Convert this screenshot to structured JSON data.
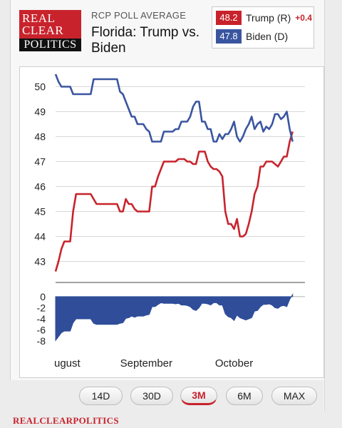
{
  "logo": {
    "line1": "REAL",
    "line2": "CLEAR",
    "line3": "POLITICS"
  },
  "header": {
    "label": "RCP POLL AVERAGE",
    "title": "Florida: Trump vs. Biden"
  },
  "legend": {
    "trump": {
      "value": "48.2",
      "name": "Trump (R)",
      "change": "+0.4"
    },
    "biden": {
      "value": "47.8",
      "name": "Biden (D)"
    }
  },
  "colors": {
    "trump": "#c8232c",
    "biden": "#3a55a0",
    "spread": "#2f4d99",
    "grid": "#d8d8d8"
  },
  "buttons": [
    {
      "label": "14D",
      "active": false
    },
    {
      "label": "30D",
      "active": false
    },
    {
      "label": "3M",
      "active": true
    },
    {
      "label": "6M",
      "active": false
    },
    {
      "label": "MAX",
      "active": false
    }
  ],
  "footer": "REALCLEARPOLITICS",
  "chart_data": {
    "type": "line",
    "x_labels": [
      "ugust",
      "September",
      "October"
    ],
    "x_label_days": [
      5,
      31,
      61
    ],
    "ylim": [
      42.5,
      50.5
    ],
    "yticks": [
      43,
      44,
      45,
      46,
      47,
      48,
      49,
      50
    ],
    "spread_ylim": [
      -8.5,
      0.5
    ],
    "spread_ticks": [
      0,
      -2,
      -4,
      -6,
      -8
    ],
    "x_range": [
      0,
      84
    ],
    "series": [
      {
        "name": "Trump (R)",
        "points": [
          [
            0,
            42.6
          ],
          [
            1,
            43.0
          ],
          [
            2,
            43.5
          ],
          [
            3,
            43.8
          ],
          [
            4,
            43.8
          ],
          [
            5,
            43.8
          ],
          [
            6,
            45.0
          ],
          [
            7,
            45.7
          ],
          [
            8,
            45.7
          ],
          [
            9,
            45.7
          ],
          [
            10,
            45.7
          ],
          [
            11,
            45.7
          ],
          [
            12,
            45.7
          ],
          [
            13,
            45.5
          ],
          [
            14,
            45.3
          ],
          [
            15,
            45.3
          ],
          [
            16,
            45.3
          ],
          [
            17,
            45.3
          ],
          [
            18,
            45.3
          ],
          [
            19,
            45.3
          ],
          [
            20,
            45.3
          ],
          [
            21,
            45.3
          ],
          [
            22,
            45.0
          ],
          [
            23,
            45.0
          ],
          [
            24,
            45.5
          ],
          [
            25,
            45.3
          ],
          [
            26,
            45.3
          ],
          [
            27,
            45.1
          ],
          [
            28,
            45.0
          ],
          [
            29,
            45.0
          ],
          [
            30,
            45.0
          ],
          [
            31,
            45.0
          ],
          [
            32,
            45.0
          ],
          [
            33,
            46.0
          ],
          [
            34,
            46.0
          ],
          [
            35,
            46.4
          ],
          [
            36,
            46.7
          ],
          [
            37,
            47.0
          ],
          [
            38,
            47.0
          ],
          [
            39,
            47.0
          ],
          [
            40,
            47.0
          ],
          [
            41,
            47.0
          ],
          [
            42,
            47.1
          ],
          [
            43,
            47.1
          ],
          [
            44,
            47.1
          ],
          [
            45,
            47.0
          ],
          [
            46,
            47.0
          ],
          [
            47,
            46.9
          ],
          [
            48,
            46.9
          ],
          [
            49,
            47.4
          ],
          [
            50,
            47.4
          ],
          [
            51,
            47.4
          ],
          [
            52,
            47.0
          ],
          [
            53,
            46.8
          ],
          [
            54,
            46.7
          ],
          [
            55,
            46.7
          ],
          [
            56,
            46.6
          ],
          [
            57,
            46.4
          ],
          [
            58,
            45.0
          ],
          [
            59,
            44.5
          ],
          [
            60,
            44.5
          ],
          [
            61,
            44.3
          ],
          [
            62,
            44.7
          ],
          [
            63,
            44.0
          ],
          [
            64,
            44.0
          ],
          [
            65,
            44.1
          ],
          [
            66,
            44.5
          ],
          [
            67,
            45.0
          ],
          [
            68,
            45.7
          ],
          [
            69,
            46.0
          ],
          [
            70,
            46.8
          ],
          [
            71,
            46.8
          ],
          [
            72,
            47.0
          ],
          [
            73,
            47.0
          ],
          [
            74,
            47.0
          ],
          [
            75,
            46.9
          ],
          [
            76,
            46.8
          ],
          [
            77,
            47.0
          ],
          [
            78,
            47.2
          ],
          [
            79,
            47.2
          ],
          [
            80,
            47.8
          ],
          [
            81,
            48.2
          ]
        ]
      },
      {
        "name": "Biden (D)",
        "points": [
          [
            0,
            50.5
          ],
          [
            1,
            50.2
          ],
          [
            2,
            50.0
          ],
          [
            3,
            50.0
          ],
          [
            4,
            50.0
          ],
          [
            5,
            50.0
          ],
          [
            6,
            49.7
          ],
          [
            7,
            49.7
          ],
          [
            8,
            49.7
          ],
          [
            9,
            49.7
          ],
          [
            10,
            49.7
          ],
          [
            11,
            49.7
          ],
          [
            12,
            49.7
          ],
          [
            13,
            50.3
          ],
          [
            14,
            50.3
          ],
          [
            15,
            50.3
          ],
          [
            16,
            50.3
          ],
          [
            17,
            50.3
          ],
          [
            18,
            50.3
          ],
          [
            19,
            50.3
          ],
          [
            20,
            50.3
          ],
          [
            21,
            50.3
          ],
          [
            22,
            49.8
          ],
          [
            23,
            49.7
          ],
          [
            24,
            49.4
          ],
          [
            25,
            49.1
          ],
          [
            26,
            48.8
          ],
          [
            27,
            48.8
          ],
          [
            28,
            48.5
          ],
          [
            29,
            48.5
          ],
          [
            30,
            48.5
          ],
          [
            31,
            48.3
          ],
          [
            32,
            48.2
          ],
          [
            33,
            47.8
          ],
          [
            34,
            47.8
          ],
          [
            35,
            47.8
          ],
          [
            36,
            47.8
          ],
          [
            37,
            48.2
          ],
          [
            38,
            48.2
          ],
          [
            39,
            48.2
          ],
          [
            40,
            48.2
          ],
          [
            41,
            48.3
          ],
          [
            42,
            48.3
          ],
          [
            43,
            48.6
          ],
          [
            44,
            48.6
          ],
          [
            45,
            48.6
          ],
          [
            46,
            48.8
          ],
          [
            47,
            49.2
          ],
          [
            48,
            49.4
          ],
          [
            49,
            49.4
          ],
          [
            50,
            48.6
          ],
          [
            51,
            48.6
          ],
          [
            52,
            48.3
          ],
          [
            53,
            48.3
          ],
          [
            54,
            47.8
          ],
          [
            55,
            47.8
          ],
          [
            56,
            48.1
          ],
          [
            57,
            47.9
          ],
          [
            58,
            48.1
          ],
          [
            59,
            48.1
          ],
          [
            60,
            48.3
          ],
          [
            61,
            48.6
          ],
          [
            62,
            48.0
          ],
          [
            63,
            47.8
          ],
          [
            64,
            48.0
          ],
          [
            65,
            48.3
          ],
          [
            66,
            48.5
          ],
          [
            67,
            48.8
          ],
          [
            68,
            48.3
          ],
          [
            69,
            48.5
          ],
          [
            70,
            48.6
          ],
          [
            71,
            48.2
          ],
          [
            72,
            48.4
          ],
          [
            73,
            48.3
          ],
          [
            74,
            48.5
          ],
          [
            75,
            48.9
          ],
          [
            76,
            48.9
          ],
          [
            77,
            48.7
          ],
          [
            78,
            48.8
          ],
          [
            79,
            49.0
          ],
          [
            80,
            48.3
          ],
          [
            81,
            47.8
          ]
        ]
      }
    ]
  }
}
